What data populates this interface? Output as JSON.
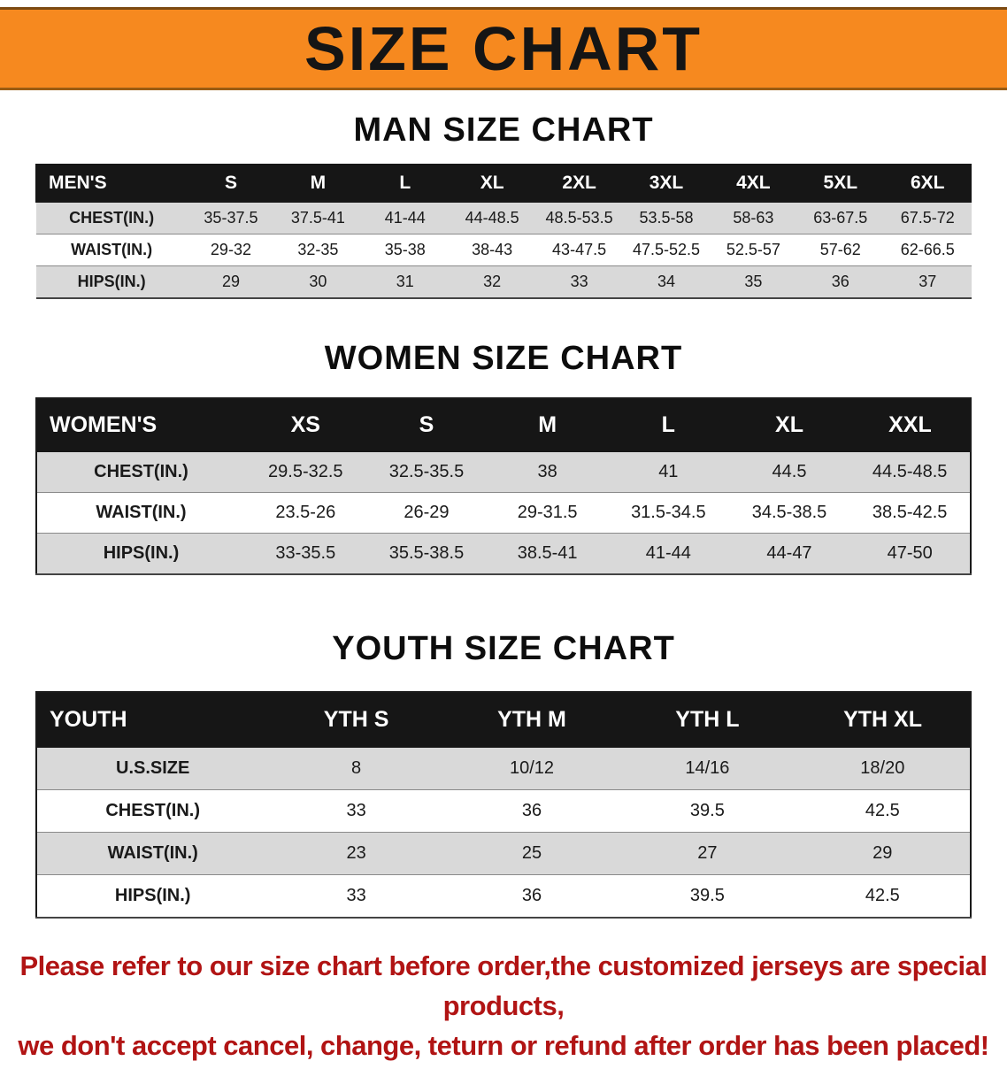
{
  "banner": {
    "title": "SIZE CHART",
    "bg_color": "#f6891f"
  },
  "men": {
    "heading": "MAN SIZE CHART",
    "header": [
      "MEN'S",
      "S",
      "M",
      "L",
      "XL",
      "2XL",
      "3XL",
      "4XL",
      "5XL",
      "6XL"
    ],
    "rows": [
      [
        "CHEST(IN.)",
        "35-37.5",
        "37.5-41",
        "41-44",
        "44-48.5",
        "48.5-53.5",
        "53.5-58",
        "58-63",
        "63-67.5",
        "67.5-72"
      ],
      [
        "WAIST(IN.)",
        "29-32",
        "32-35",
        "35-38",
        "38-43",
        "43-47.5",
        "47.5-52.5",
        "52.5-57",
        "57-62",
        "62-66.5"
      ],
      [
        "HIPS(IN.)",
        "29",
        "30",
        "31",
        "32",
        "33",
        "34",
        "35",
        "36",
        "37"
      ]
    ]
  },
  "women": {
    "heading": "WOMEN SIZE CHART",
    "header": [
      "WOMEN'S",
      "XS",
      "S",
      "M",
      "L",
      "XL",
      "XXL"
    ],
    "rows": [
      [
        "CHEST(IN.)",
        "29.5-32.5",
        "32.5-35.5",
        "38",
        "41",
        "44.5",
        "44.5-48.5"
      ],
      [
        "WAIST(IN.)",
        "23.5-26",
        "26-29",
        "29-31.5",
        "31.5-34.5",
        "34.5-38.5",
        "38.5-42.5"
      ],
      [
        "HIPS(IN.)",
        "33-35.5",
        "35.5-38.5",
        "38.5-41",
        "41-44",
        "44-47",
        "47-50"
      ]
    ]
  },
  "youth": {
    "heading": "YOUTH SIZE CHART",
    "header": [
      "YOUTH",
      "YTH S",
      "YTH M",
      "YTH L",
      "YTH XL"
    ],
    "rows": [
      [
        "U.S.SIZE",
        "8",
        "10/12",
        "14/16",
        "18/20"
      ],
      [
        "CHEST(IN.)",
        "33",
        "36",
        "39.5",
        "42.5"
      ],
      [
        "WAIST(IN.)",
        "23",
        "25",
        "27",
        "29"
      ],
      [
        "HIPS(IN.)",
        "33",
        "36",
        "39.5",
        "42.5"
      ]
    ]
  },
  "footer": {
    "line1": "Please refer to our size chart before order,the customized jerseys are special products,",
    "line2": "we don't accept cancel, change, teturn or refund after order has been placed!",
    "color": "#b11414"
  }
}
